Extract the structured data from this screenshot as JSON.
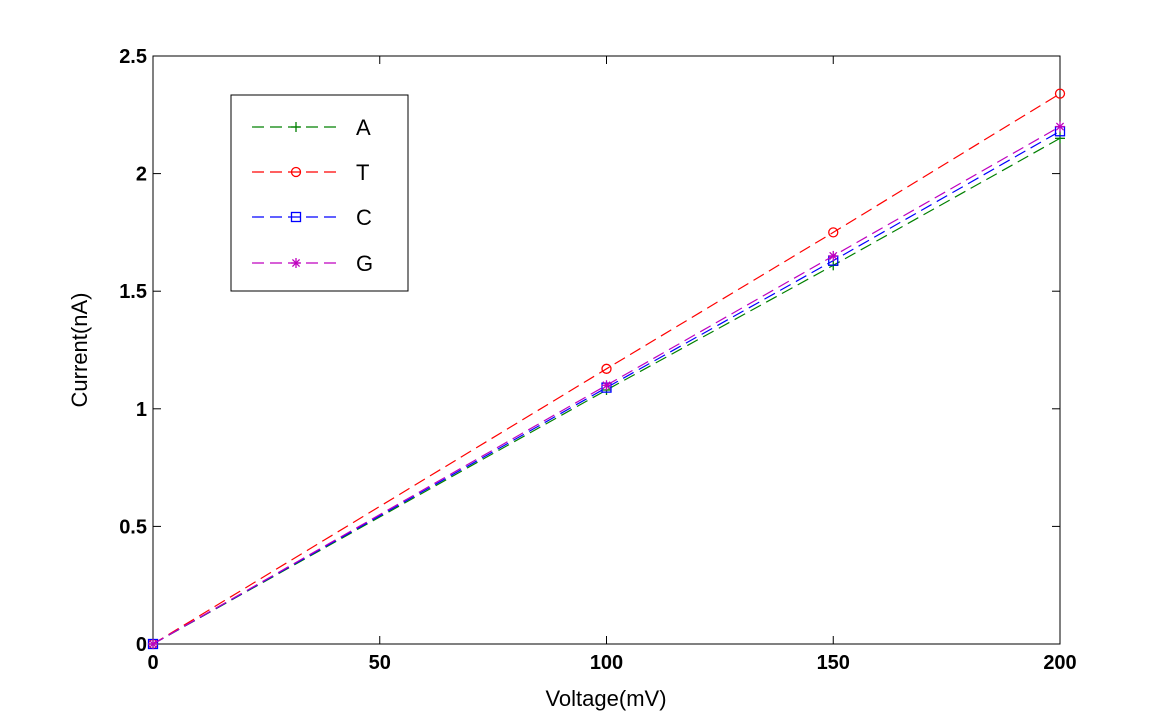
{
  "chart_data": {
    "type": "line",
    "xlabel": "Voltage(mV)",
    "ylabel": "Current(nA)",
    "xlim": [
      0,
      200
    ],
    "ylim": [
      0,
      2.5
    ],
    "xticks": [
      "0",
      "50",
      "100",
      "150",
      "200"
    ],
    "yticks": [
      "0",
      "0.5",
      "1",
      "1.5",
      "2",
      "2.5"
    ],
    "grid": false,
    "legend_position": "top-left",
    "x": [
      0,
      100,
      150,
      200
    ],
    "series": [
      {
        "name": "A",
        "values": [
          0,
          1.08,
          1.61,
          2.15
        ],
        "color": "#008000",
        "marker": "plus",
        "line_style": "dashed"
      },
      {
        "name": "T",
        "values": [
          0,
          1.17,
          1.75,
          2.34
        ],
        "color": "#ff0000",
        "marker": "circle",
        "line_style": "dashed"
      },
      {
        "name": "C",
        "values": [
          0,
          1.09,
          1.63,
          2.18
        ],
        "color": "#0000ff",
        "marker": "square",
        "line_style": "dashed"
      },
      {
        "name": "G",
        "values": [
          0,
          1.1,
          1.65,
          2.2
        ],
        "color": "#bf00bf",
        "marker": "star",
        "line_style": "dashed"
      }
    ]
  }
}
